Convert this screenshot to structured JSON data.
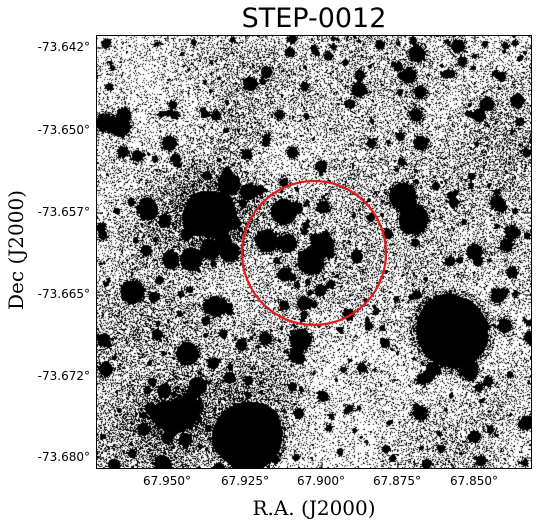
{
  "title": "STEP-0012",
  "image": {
    "description_type": "astronomical negative-grayscale sky image",
    "background": "#ffffff",
    "foreground": "#000000",
    "marker_color": "#e41a1c",
    "marker_shape": "circle"
  },
  "axes": {
    "xlabel": "R.A. (J2000)",
    "ylabel": "Dec (J2000)",
    "x_ticks": [
      "67.950°",
      "67.925°",
      "67.900°",
      "67.875°",
      "67.850°"
    ],
    "y_ticks": [
      "-73.642°",
      "-73.650°",
      "-73.657°",
      "-73.665°",
      "-73.672°",
      "-73.680°"
    ]
  }
}
